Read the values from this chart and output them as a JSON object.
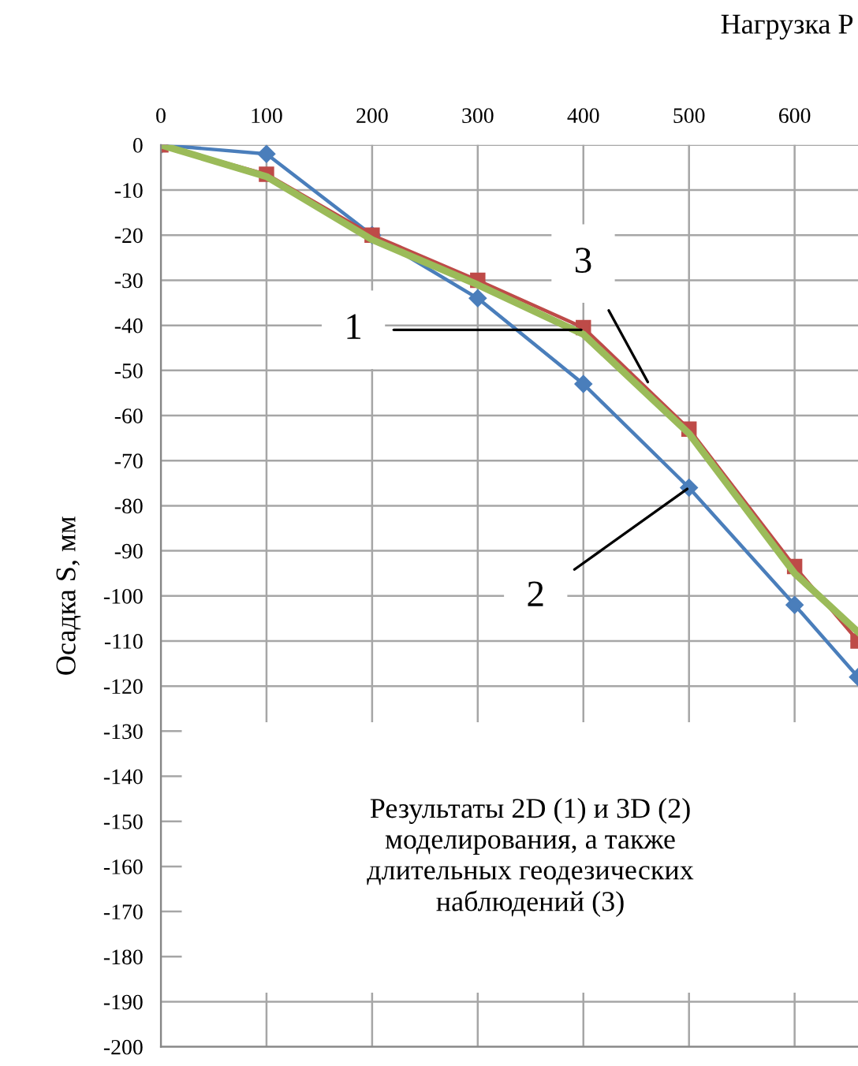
{
  "chart_data": {
    "type": "line",
    "title": "Нагрузка Р",
    "ylabel": "Осадка S, мм",
    "x": [
      0,
      100,
      200,
      300,
      400,
      500,
      600,
      660
    ],
    "series": [
      {
        "color": "#4a7ebb",
        "marker": "diamond",
        "values": [
          0,
          -2,
          -20,
          -34,
          -53,
          -76,
          -102,
          -118
        ]
      },
      {
        "color": "#be4b48",
        "marker": "square",
        "values": [
          0,
          -6.5,
          -20,
          -30,
          -40.5,
          -63,
          -93.5,
          -110
        ]
      },
      {
        "color": "#9bbb59",
        "marker": "none",
        "values": [
          0,
          -7,
          -21,
          -31,
          -42,
          -64,
          -95,
          -108
        ]
      }
    ],
    "xlim": [
      0,
      660
    ],
    "xticks": [
      0,
      100,
      200,
      300,
      400,
      500,
      600
    ],
    "ylim": [
      -200,
      0
    ],
    "yticks": [
      0,
      -10,
      -20,
      -30,
      -40,
      -50,
      -60,
      -70,
      -80,
      -90,
      -100,
      -110,
      -120,
      -130,
      -140,
      -150,
      -160,
      -170,
      -180,
      -190,
      -200
    ],
    "grid": true,
    "legend": false,
    "annotations": [
      {
        "text": "1",
        "x": 400,
        "y": -41
      },
      {
        "text": "3",
        "x": 462,
        "y": -53
      },
      {
        "text": "2",
        "x": 500,
        "y": -76
      },
      "Результаты 2D (1) и 3D (2)\nмоделирования, а также\nдлительных геодезических\nнаблюдений (3)"
    ]
  }
}
